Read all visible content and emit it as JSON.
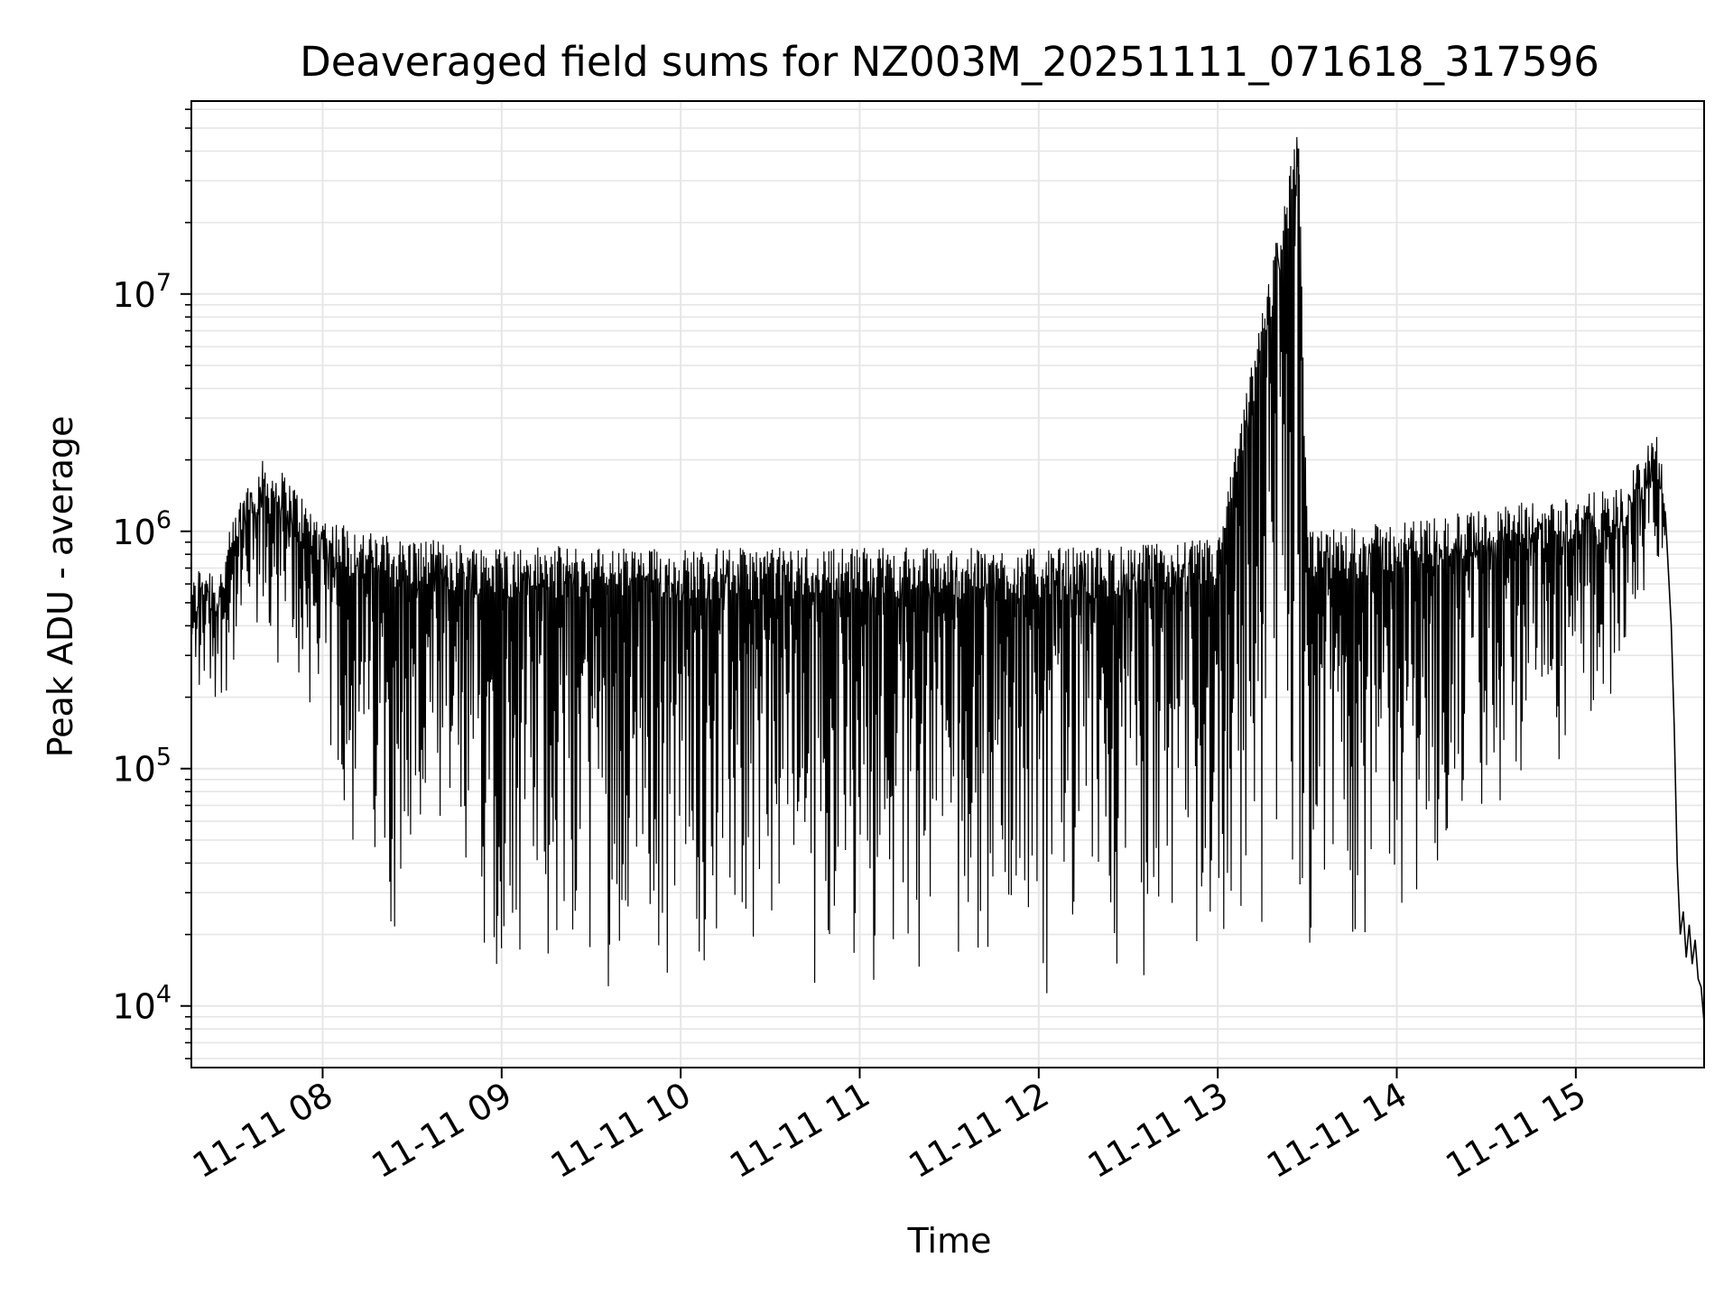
{
  "chart_data": {
    "type": "line",
    "title": "Deaveraged field sums for NZ003M_20251111_071618_317596",
    "xlabel": "Time",
    "ylabel": "Peak ADU - average",
    "y_scale": "log",
    "x_range": [
      "2025-11-11 07:16",
      "2025-11-11 15:43"
    ],
    "ylim": [
      5500,
      65000000
    ],
    "grid": true,
    "x_ticks": [
      {
        "value": "2025-11-11 08:00",
        "label": "11-11 08"
      },
      {
        "value": "2025-11-11 09:00",
        "label": "11-11 09"
      },
      {
        "value": "2025-11-11 10:00",
        "label": "11-11 10"
      },
      {
        "value": "2025-11-11 11:00",
        "label": "11-11 11"
      },
      {
        "value": "2025-11-11 12:00",
        "label": "11-11 12"
      },
      {
        "value": "2025-11-11 13:00",
        "label": "11-11 13"
      },
      {
        "value": "2025-11-11 14:00",
        "label": "11-11 14"
      },
      {
        "value": "2025-11-11 15:00",
        "label": "11-11 15"
      }
    ],
    "y_ticks": [
      {
        "value": 10000,
        "base": "10",
        "exp": "4"
      },
      {
        "value": 100000,
        "base": "10",
        "exp": "5"
      },
      {
        "value": 1000000,
        "base": "10",
        "exp": "6"
      },
      {
        "value": 10000000,
        "base": "10",
        "exp": "7"
      }
    ],
    "series": [
      {
        "color": "#000000",
        "points": [
          [
            "2025-11-11 07:16",
            480000
          ],
          [
            "2025-11-11 07:20",
            650000
          ],
          [
            "2025-11-11 07:25",
            550000
          ],
          [
            "2025-11-11 07:30",
            900000
          ],
          [
            "2025-11-11 07:35",
            1400000
          ],
          [
            "2025-11-11 07:40",
            1600000
          ],
          [
            "2025-11-11 07:45",
            1500000
          ],
          [
            "2025-11-11 07:50",
            1300000
          ],
          [
            "2025-11-11 07:55",
            1050000
          ],
          [
            "2025-11-11 08:00",
            950000
          ],
          [
            "2025-11-11 08:15",
            800000
          ],
          [
            "2025-11-11 08:30",
            750000
          ],
          [
            "2025-11-11 09:00",
            700000
          ],
          [
            "2025-11-11 10:00",
            680000
          ],
          [
            "2025-11-11 11:00",
            690000
          ],
          [
            "2025-11-11 12:00",
            680000
          ],
          [
            "2025-11-11 12:30",
            700000
          ],
          [
            "2025-11-11 13:00",
            750000
          ],
          [
            "2025-11-11 13:27",
            41000000
          ],
          [
            "2025-11-11 13:30",
            800000
          ],
          [
            "2025-11-11 14:00",
            880000
          ],
          [
            "2025-11-11 14:30",
            1000000
          ],
          [
            "2025-11-11 15:00",
            1150000
          ],
          [
            "2025-11-11 15:15",
            1200000
          ],
          [
            "2025-11-11 15:27",
            2200000
          ],
          [
            "2025-11-11 15:30",
            1200000
          ],
          [
            "2025-11-11 15:33",
            150000
          ],
          [
            "2025-11-11 15:35",
            18000
          ],
          [
            "2025-11-11 15:40",
            14000
          ],
          [
            "2025-11-11 15:43",
            8500
          ]
        ],
        "lower_envelope": [
          [
            "2025-11-11 07:16",
            150000
          ],
          [
            "2025-11-11 07:40",
            250000
          ],
          [
            "2025-11-11 08:00",
            120000
          ],
          [
            "2025-11-11 08:10",
            30000
          ],
          [
            "2025-11-11 08:30",
            15000
          ],
          [
            "2025-11-11 09:00",
            11000
          ],
          [
            "2025-11-11 10:00",
            11000
          ],
          [
            "2025-11-11 11:00",
            11000
          ],
          [
            "2025-11-11 12:00",
            11000
          ],
          [
            "2025-11-11 13:00",
            12000
          ],
          [
            "2025-11-11 13:30",
            15000
          ],
          [
            "2025-11-11 14:00",
            20000
          ],
          [
            "2025-11-11 14:30",
            40000
          ],
          [
            "2025-11-11 15:00",
            80000
          ],
          [
            "2025-11-11 15:27",
            600000
          ]
        ]
      }
    ]
  }
}
